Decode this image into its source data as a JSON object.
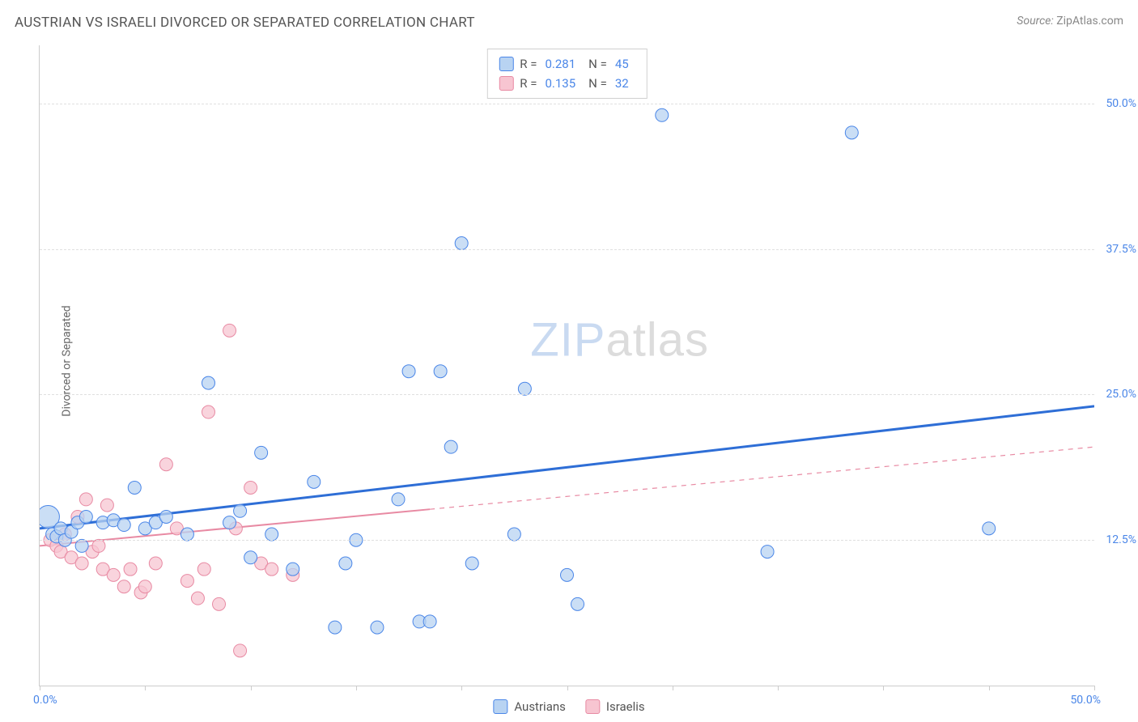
{
  "title": "AUSTRIAN VS ISRAELI DIVORCED OR SEPARATED CORRELATION CHART",
  "source_label": "Source:",
  "source_value": "ZipAtlas.com",
  "y_axis_label": "Divorced or Separated",
  "watermark_a": "ZIP",
  "watermark_b": "atlas",
  "chart": {
    "type": "scatter",
    "xlim": [
      0,
      50
    ],
    "ylim": [
      0,
      55
    ],
    "y_ticks": [
      12.5,
      25.0,
      37.5,
      50.0
    ],
    "y_tick_labels": [
      "12.5%",
      "25.0%",
      "37.5%",
      "50.0%"
    ],
    "x_ticks": [
      0,
      5,
      10,
      15,
      20,
      25,
      30,
      35,
      40,
      45,
      50
    ],
    "x_tick_labels_shown": {
      "0": "0.0%",
      "50": "50.0%"
    },
    "background_color": "#ffffff",
    "grid_color": "#e0e0e0",
    "axis_color": "#cccccc",
    "marker_radius": 8,
    "marker_radius_large": 14,
    "marker_stroke_width": 1,
    "series": [
      {
        "name": "Austrians",
        "fill": "#b8d3f2",
        "stroke": "#4a86e8",
        "r_value": "0.281",
        "n_value": "45",
        "points": [
          [
            0.4,
            14.5,
            14
          ],
          [
            0.6,
            13.0
          ],
          [
            0.8,
            12.8
          ],
          [
            1.0,
            13.5
          ],
          [
            1.2,
            12.5
          ],
          [
            1.5,
            13.2
          ],
          [
            1.8,
            14.0
          ],
          [
            2.0,
            12.0
          ],
          [
            2.2,
            14.5
          ],
          [
            3.0,
            14.0
          ],
          [
            3.5,
            14.2
          ],
          [
            4.0,
            13.8
          ],
          [
            4.5,
            17.0
          ],
          [
            5.0,
            13.5
          ],
          [
            5.5,
            14.0
          ],
          [
            6.0,
            14.5
          ],
          [
            7.0,
            13.0
          ],
          [
            8.0,
            26.0
          ],
          [
            9.0,
            14.0
          ],
          [
            9.5,
            15.0
          ],
          [
            10.0,
            11.0
          ],
          [
            10.5,
            20.0
          ],
          [
            11.0,
            13.0
          ],
          [
            12.0,
            10.0
          ],
          [
            13.0,
            17.5
          ],
          [
            14.0,
            5.0
          ],
          [
            14.5,
            10.5
          ],
          [
            15.0,
            12.5
          ],
          [
            16.0,
            5.0
          ],
          [
            17.0,
            16.0
          ],
          [
            17.5,
            27.0
          ],
          [
            18.0,
            5.5
          ],
          [
            18.5,
            5.5
          ],
          [
            19.0,
            27.0
          ],
          [
            19.5,
            20.5
          ],
          [
            20.0,
            38.0
          ],
          [
            20.5,
            10.5
          ],
          [
            22.5,
            13.0
          ],
          [
            23.0,
            25.5
          ],
          [
            25.5,
            7.0
          ],
          [
            25.0,
            9.5
          ],
          [
            29.5,
            49.0
          ],
          [
            34.5,
            11.5
          ],
          [
            38.5,
            47.5
          ],
          [
            45.0,
            13.5
          ]
        ],
        "trend": {
          "x1": 0,
          "y1": 13.5,
          "x2": 50,
          "y2": 24.0,
          "color": "#2e6ed6",
          "width": 3,
          "solid_until_x": 50
        }
      },
      {
        "name": "Israelis",
        "fill": "#f7c5d1",
        "stroke": "#e88aa3",
        "r_value": "0.135",
        "n_value": "32",
        "points": [
          [
            0.5,
            12.5
          ],
          [
            0.8,
            12.0
          ],
          [
            1.0,
            11.5
          ],
          [
            1.2,
            13.0
          ],
          [
            1.5,
            11.0
          ],
          [
            1.8,
            14.5
          ],
          [
            2.0,
            10.5
          ],
          [
            2.2,
            16.0
          ],
          [
            2.5,
            11.5
          ],
          [
            2.8,
            12.0
          ],
          [
            3.0,
            10.0
          ],
          [
            3.2,
            15.5
          ],
          [
            3.5,
            9.5
          ],
          [
            4.0,
            8.5
          ],
          [
            4.3,
            10.0
          ],
          [
            4.8,
            8.0
          ],
          [
            5.0,
            8.5
          ],
          [
            5.5,
            10.5
          ],
          [
            6.0,
            19.0
          ],
          [
            6.5,
            13.5
          ],
          [
            7.0,
            9.0
          ],
          [
            7.5,
            7.5
          ],
          [
            7.8,
            10.0
          ],
          [
            8.0,
            23.5
          ],
          [
            8.5,
            7.0
          ],
          [
            9.0,
            30.5
          ],
          [
            9.3,
            13.5
          ],
          [
            9.5,
            3.0
          ],
          [
            10.0,
            17.0
          ],
          [
            10.5,
            10.5
          ],
          [
            11.0,
            10.0
          ],
          [
            12.0,
            9.5
          ]
        ],
        "trend": {
          "x1": 0,
          "y1": 12.0,
          "x2": 50,
          "y2": 20.5,
          "color": "#e88aa3",
          "width": 2,
          "solid_until_x": 18.5
        }
      }
    ]
  },
  "legend": {
    "series_a": "Austrians",
    "series_b": "Israelis"
  },
  "stats_labels": {
    "r": "R =",
    "n": "N ="
  }
}
